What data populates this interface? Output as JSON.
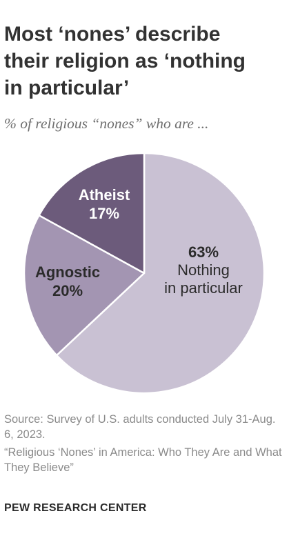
{
  "title": "Most ‘nones’ describe\ntheir religion as ‘nothing\nin particular’",
  "subtitle": "% of religious “nones” who are ...",
  "chart_data": {
    "type": "pie",
    "start_angle": 0,
    "slices": [
      {
        "name": "Nothing in particular",
        "label_lines": [
          "63%",
          "Nothing",
          "in particular"
        ],
        "value": 63,
        "color": "#c9c1d3",
        "label_color": "#2b2b2b",
        "label_weight": [
          "bold",
          "normal",
          "normal"
        ]
      },
      {
        "name": "Agnostic",
        "label_lines": [
          "Agnostic",
          "20%"
        ],
        "value": 20,
        "color": "#a395b2",
        "label_color": "#2b2b2b",
        "label_weight": [
          "bold",
          "bold"
        ]
      },
      {
        "name": "Atheist",
        "label_lines": [
          "Atheist",
          "17%"
        ],
        "value": 17,
        "color": "#6c5b7b",
        "label_color": "#ffffff",
        "label_weight": [
          "bold",
          "bold"
        ]
      }
    ]
  },
  "source": {
    "line1": "Source: Survey of U.S. adults conducted July 31-Aug. 6, 2023.",
    "line2": "“Religious ‘Nones’ in America: Who They Are and What They Believe”"
  },
  "logo": "PEW RESEARCH CENTER"
}
